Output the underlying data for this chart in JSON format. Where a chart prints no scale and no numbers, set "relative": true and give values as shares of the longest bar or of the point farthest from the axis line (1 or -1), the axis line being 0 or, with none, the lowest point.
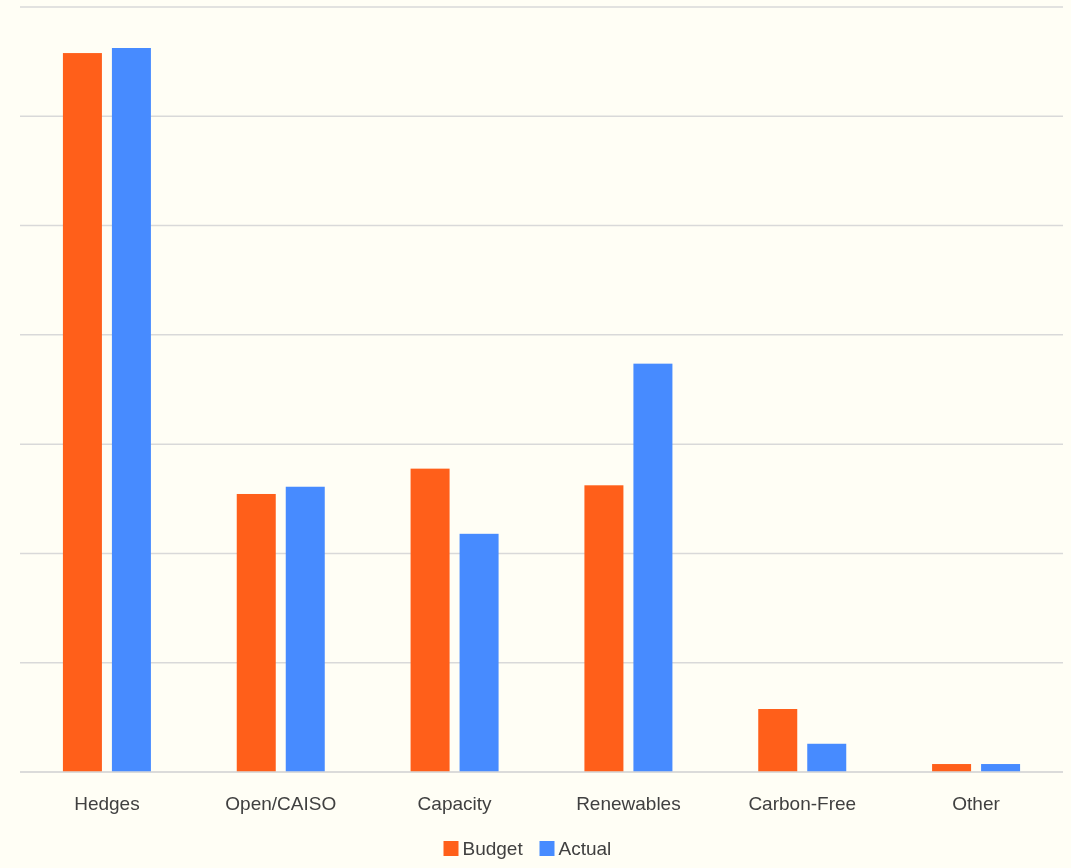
{
  "chart_data": {
    "type": "bar",
    "relative": true,
    "grid": "y",
    "legend": "bottom",
    "categories": [
      "Hedges",
      "Open/CAISO",
      "Capacity",
      "Renewables",
      "Carbon-Free",
      "Other"
    ],
    "series": [
      {
        "name": "Budget",
        "color": "#ff5f1a",
        "values": [
          0.993,
          0.384,
          0.419,
          0.396,
          0.087,
          0.011
        ]
      },
      {
        "name": "Actual",
        "color": "#478bff",
        "values": [
          1,
          0.394,
          0.329,
          0.564,
          0.039,
          0.011
        ]
      }
    ]
  }
}
